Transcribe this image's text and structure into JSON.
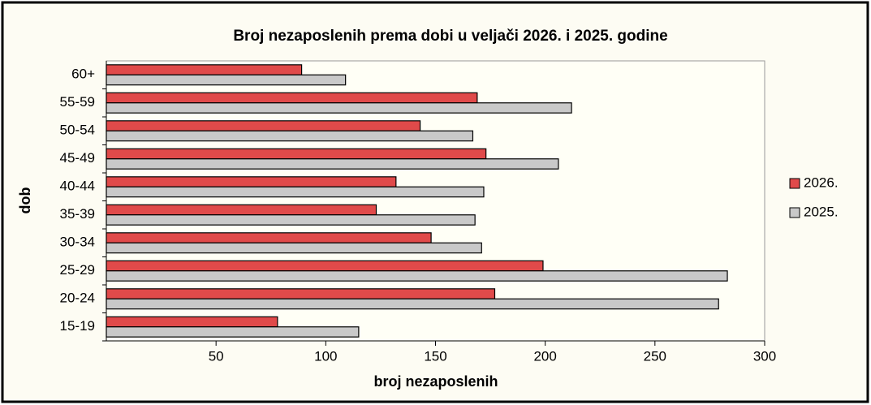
{
  "chart_data": {
    "type": "bar",
    "orientation": "horizontal",
    "title": "Broj nezaposlenih  prema dobi u veljači  2026. i 2025. godine",
    "x_label": "broj nezaposlenih",
    "y_label": "dob",
    "categories": [
      "15-19",
      "20-24",
      "25-29",
      "30-34",
      "35-39",
      "40-44",
      "45-49",
      "50-54",
      "55-59",
      "60+"
    ],
    "series": [
      {
        "name": "2026.",
        "color": "#e04a4a",
        "values": [
          78,
          177,
          199,
          148,
          123,
          132,
          173,
          143,
          169,
          89
        ]
      },
      {
        "name": "2025.",
        "color": "#c9c9c9",
        "values": [
          115,
          279,
          283,
          171,
          168,
          172,
          206,
          167,
          212,
          109
        ]
      }
    ],
    "xlim": [
      0,
      300
    ],
    "xticks": [
      50,
      100,
      150,
      200,
      250,
      300
    ],
    "legend": "right"
  }
}
